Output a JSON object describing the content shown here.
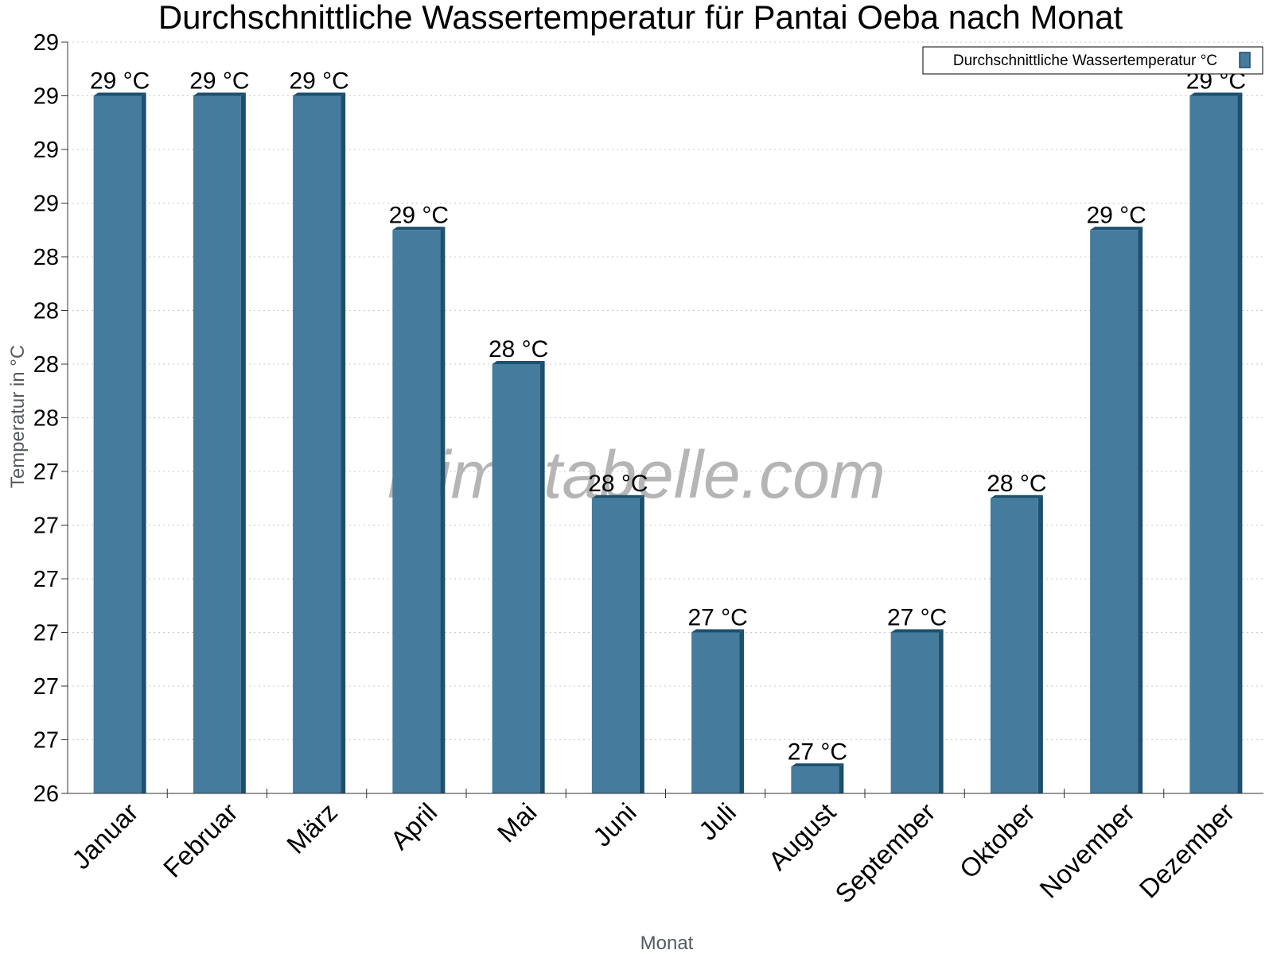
{
  "chart_data": {
    "type": "bar",
    "title": "Durchschnittliche Wassertemperatur für Pantai Oeba nach Monat",
    "xlabel": "Monat",
    "ylabel": "Temperatur in °C",
    "categories": [
      "Januar",
      "Februar",
      "März",
      "April",
      "Mai",
      "Juni",
      "Juli",
      "August",
      "September",
      "Oktober",
      "November",
      "Dezember"
    ],
    "series": [
      {
        "name": "Durchschnittliche Wassertemperatur °C",
        "values": [
          29.0,
          29.0,
          29.0,
          28.5,
          28.0,
          27.5,
          27.0,
          26.5,
          27.0,
          27.5,
          28.5,
          29.0
        ],
        "labels": [
          "29 °C",
          "29 °C",
          "29 °C",
          "29 °C",
          "28 °C",
          "28 °C",
          "27 °C",
          "27 °C",
          "27 °C",
          "28 °C",
          "29 °C",
          "29 °C"
        ],
        "color": "#457b9d"
      }
    ],
    "ylim": [
      26.4,
      29.2
    ],
    "ytick_values": [
      26.4,
      26.6,
      26.8,
      27.0,
      27.2,
      27.4,
      27.6,
      27.8,
      28.0,
      28.2,
      28.4,
      28.6,
      28.8,
      29.0,
      29.2
    ],
    "ytick_labels": [
      "26",
      "27",
      "27",
      "27",
      "27",
      "27",
      "27",
      "28",
      "28",
      "28",
      "28",
      "29",
      "29",
      "29",
      "29"
    ],
    "grid": true,
    "legend": "top-right",
    "watermark": "klimatabelle.com"
  }
}
